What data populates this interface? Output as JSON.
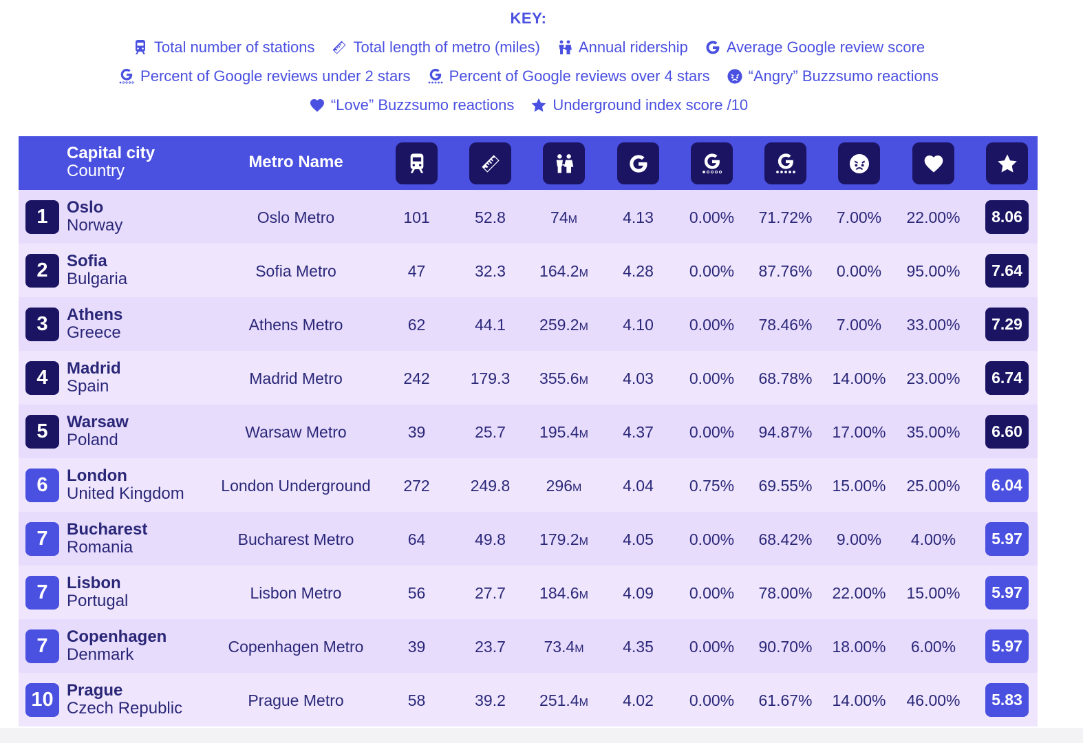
{
  "key": {
    "title": "KEY:",
    "items": [
      {
        "icon": "train-icon",
        "label": "Total number of stations"
      },
      {
        "icon": "ruler-icon",
        "label": "Total length of metro (miles)"
      },
      {
        "icon": "people-icon",
        "label": "Annual ridership"
      },
      {
        "icon": "google-icon",
        "label": "Average Google review score"
      },
      {
        "icon": "google-low-stars-icon",
        "label": "Percent of Google reviews under 2 stars"
      },
      {
        "icon": "google-high-stars-icon",
        "label": "Percent of Google reviews over 4 stars"
      },
      {
        "icon": "angry-face-icon",
        "label": "“Angry” Buzzsumo reactions"
      },
      {
        "icon": "heart-icon",
        "label": "“Love” Buzzsumo reactions"
      },
      {
        "icon": "star-icon",
        "label": "Underground index score /10"
      }
    ]
  },
  "header": {
    "city_label": "Capital city",
    "country_label": "Country",
    "metro_label": "Metro Name"
  },
  "colors": {
    "header_bg": "#4a50e0",
    "dark_badge": "#1a1463",
    "blue_badge": "#4a50e0",
    "row_bg": "#e8dcfd",
    "row_alt_bg": "#efe6fd"
  },
  "rows": [
    {
      "rank": "1",
      "city": "Oslo",
      "country": "Norway",
      "metro": "Oslo Metro",
      "stations": "101",
      "length": "52.8",
      "ridership": "74",
      "ridership_unit": "M",
      "google": "4.13",
      "under2": "0.00%",
      "over4": "71.72%",
      "angry": "7.00%",
      "love": "22.00%",
      "score": "8.06",
      "badge": "dark"
    },
    {
      "rank": "2",
      "city": "Sofia",
      "country": "Bulgaria",
      "metro": "Sofia Metro",
      "stations": "47",
      "length": "32.3",
      "ridership": "164.2",
      "ridership_unit": "M",
      "google": "4.28",
      "under2": "0.00%",
      "over4": "87.76%",
      "angry": "0.00%",
      "love": "95.00%",
      "score": "7.64",
      "badge": "dark"
    },
    {
      "rank": "3",
      "city": "Athens",
      "country": "Greece",
      "metro": "Athens Metro",
      "stations": "62",
      "length": "44.1",
      "ridership": "259.2",
      "ridership_unit": "M",
      "google": "4.10",
      "under2": "0.00%",
      "over4": "78.46%",
      "angry": "7.00%",
      "love": "33.00%",
      "score": "7.29",
      "badge": "dark"
    },
    {
      "rank": "4",
      "city": "Madrid",
      "country": "Spain",
      "metro": "Madrid Metro",
      "stations": "242",
      "length": "179.3",
      "ridership": "355.6",
      "ridership_unit": "M",
      "google": "4.03",
      "under2": "0.00%",
      "over4": "68.78%",
      "angry": "14.00%",
      "love": "23.00%",
      "score": "6.74",
      "badge": "dark"
    },
    {
      "rank": "5",
      "city": "Warsaw",
      "country": "Poland",
      "metro": "Warsaw Metro",
      "stations": "39",
      "length": "25.7",
      "ridership": "195.4",
      "ridership_unit": "M",
      "google": "4.37",
      "under2": "0.00%",
      "over4": "94.87%",
      "angry": "17.00%",
      "love": "35.00%",
      "score": "6.60",
      "badge": "dark"
    },
    {
      "rank": "6",
      "city": "London",
      "country": "United Kingdom",
      "metro": "London Underground",
      "stations": "272",
      "length": "249.8",
      "ridership": "296",
      "ridership_unit": "M",
      "google": "4.04",
      "under2": "0.75%",
      "over4": "69.55%",
      "angry": "15.00%",
      "love": "25.00%",
      "score": "6.04",
      "badge": "blue"
    },
    {
      "rank": "7",
      "city": "Bucharest",
      "country": "Romania",
      "metro": "Bucharest Metro",
      "stations": "64",
      "length": "49.8",
      "ridership": "179.2",
      "ridership_unit": "M",
      "google": "4.05",
      "under2": "0.00%",
      "over4": "68.42%",
      "angry": "9.00%",
      "love": "4.00%",
      "score": "5.97",
      "badge": "blue"
    },
    {
      "rank": "7",
      "city": "Lisbon",
      "country": "Portugal",
      "metro": "Lisbon Metro",
      "stations": "56",
      "length": "27.7",
      "ridership": "184.6",
      "ridership_unit": "M",
      "google": "4.09",
      "under2": "0.00%",
      "over4": "78.00%",
      "angry": "22.00%",
      "love": "15.00%",
      "score": "5.97",
      "badge": "blue"
    },
    {
      "rank": "7",
      "city": "Copenhagen",
      "country": "Denmark",
      "metro": "Copenhagen Metro",
      "stations": "39",
      "length": "23.7",
      "ridership": "73.4",
      "ridership_unit": "M",
      "google": "4.35",
      "under2": "0.00%",
      "over4": "90.70%",
      "angry": "18.00%",
      "love": "6.00%",
      "score": "5.97",
      "badge": "blue"
    },
    {
      "rank": "10",
      "city": "Prague",
      "country": "Czech Republic",
      "metro": "Prague Metro",
      "stations": "58",
      "length": "39.2",
      "ridership": "251.4",
      "ridership_unit": "M",
      "google": "4.02",
      "under2": "0.00%",
      "over4": "61.67%",
      "angry": "14.00%",
      "love": "46.00%",
      "score": "5.83",
      "badge": "blue"
    }
  ]
}
